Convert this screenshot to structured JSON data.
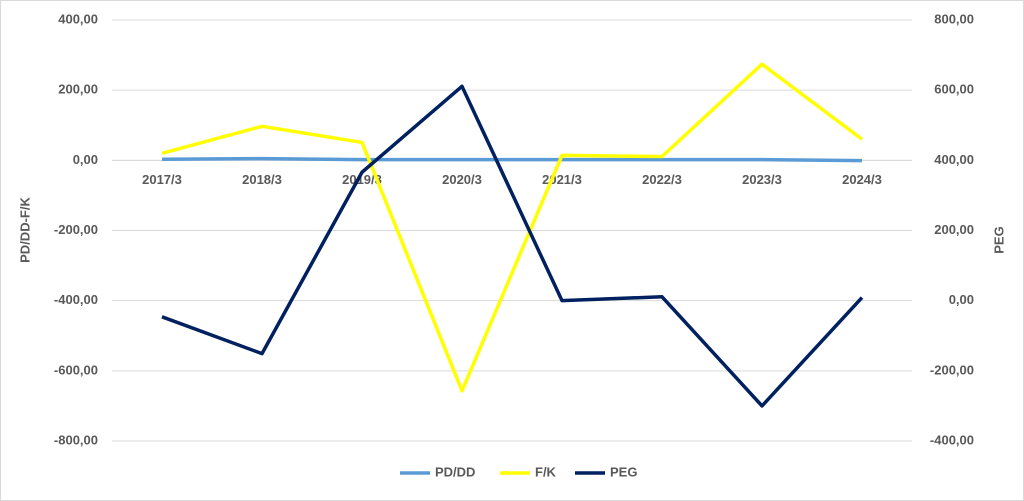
{
  "chart_data": {
    "type": "line",
    "categories": [
      "2017/3",
      "2018/3",
      "2019/3",
      "2020/3",
      "2021/3",
      "2022/3",
      "2023/3",
      "2024/3"
    ],
    "y_label": "PD/DD-F/K",
    "y2_label": "PEG",
    "ylim": [
      -800,
      400
    ],
    "yticks": [
      {
        "value": -800,
        "label": "-800,00"
      },
      {
        "value": -600,
        "label": "-600,00"
      },
      {
        "value": -400,
        "label": "-400,00"
      },
      {
        "value": -200,
        "label": "-200,00"
      },
      {
        "value": 0,
        "label": "0,00"
      },
      {
        "value": 200,
        "label": "200,00"
      },
      {
        "value": 400,
        "label": "400,00"
      }
    ],
    "y2lim": [
      -400,
      800
    ],
    "y2ticks": [
      {
        "value": -400,
        "label": "-400,00"
      },
      {
        "value": -200,
        "label": "-200,00"
      },
      {
        "value": 0,
        "label": "0,00"
      },
      {
        "value": 200,
        "label": "200,00"
      },
      {
        "value": 400,
        "label": "400,00"
      },
      {
        "value": 600,
        "label": "600,00"
      },
      {
        "value": 800,
        "label": "800,00"
      }
    ],
    "grid": true,
    "legend": "bottom",
    "series": [
      {
        "name": "PD/DD",
        "color": "#5b9bd5",
        "values": [
          3,
          5,
          2,
          2,
          2,
          2,
          2,
          -1
        ]
      },
      {
        "name": "F/K",
        "color": "#ffff00",
        "values": [
          20,
          97,
          51,
          -657,
          14,
          11,
          274,
          60
        ]
      },
      {
        "name": "PEG",
        "color": "#002060",
        "axis": "y2",
        "values": [
          -46,
          -151,
          366,
          611,
          0,
          11,
          -300,
          9
        ]
      }
    ]
  }
}
